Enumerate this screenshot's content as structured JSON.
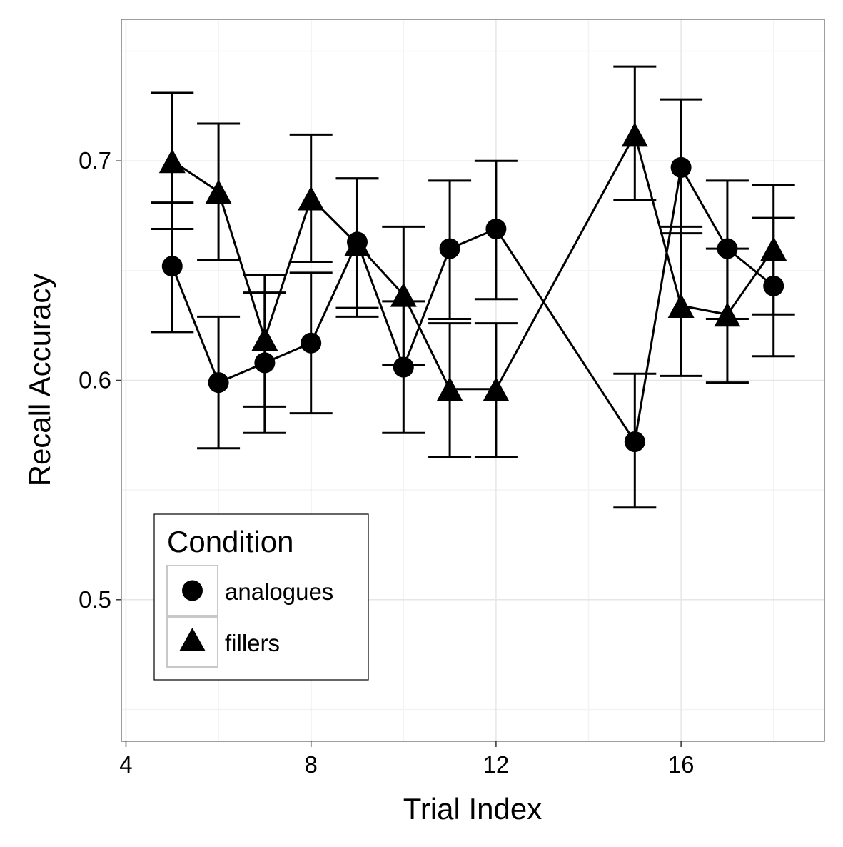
{
  "chart_data": {
    "type": "line",
    "xlabel": "Trial Index",
    "ylabel": "Recall Accuracy",
    "xlim": [
      3.9,
      19.1
    ],
    "ylim": [
      0.4355,
      0.7645
    ],
    "x_ticks": [
      4,
      8,
      12,
      16
    ],
    "x_tick_labels": [
      "4",
      "8",
      "12",
      "16"
    ],
    "y_ticks": [
      0.5,
      0.6,
      0.7
    ],
    "y_tick_labels": [
      "0.5",
      "0.6",
      "0.7"
    ],
    "grid": true,
    "error_bars": true,
    "legend": {
      "title": "Condition",
      "placement": "bottom-left",
      "entries": [
        {
          "label": "analogues",
          "shape": "circle"
        },
        {
          "label": "fillers",
          "shape": "triangle"
        }
      ]
    },
    "series": [
      {
        "name": "analogues",
        "shape": "circle",
        "x": [
          5,
          6,
          7,
          8,
          9,
          10,
          11,
          12,
          15,
          16,
          17,
          18
        ],
        "values": [
          0.652,
          0.599,
          0.608,
          0.617,
          0.663,
          0.606,
          0.66,
          0.669,
          0.572,
          0.697,
          0.66,
          0.643
        ],
        "lower": [
          0.622,
          0.569,
          0.576,
          0.585,
          0.633,
          0.576,
          0.628,
          0.637,
          0.542,
          0.667,
          0.628,
          0.611
        ],
        "upper": [
          0.681,
          0.629,
          0.64,
          0.649,
          0.692,
          0.636,
          0.691,
          0.7,
          0.603,
          0.728,
          0.691,
          0.674
        ]
      },
      {
        "name": "fillers",
        "shape": "triangle",
        "x": [
          5,
          6,
          7,
          8,
          9,
          10,
          11,
          12,
          15,
          16,
          17,
          18
        ],
        "values": [
          0.7,
          0.686,
          0.619,
          0.683,
          0.662,
          0.639,
          0.596,
          0.596,
          0.712,
          0.634,
          0.63,
          0.66
        ],
        "lower": [
          0.669,
          0.655,
          0.588,
          0.654,
          0.629,
          0.607,
          0.565,
          0.565,
          0.682,
          0.602,
          0.599,
          0.63
        ],
        "upper": [
          0.731,
          0.717,
          0.648,
          0.712,
          0.692,
          0.67,
          0.626,
          0.626,
          0.743,
          0.67,
          0.66,
          0.689
        ]
      }
    ],
    "colors": {
      "mark": "#000000",
      "grid_major": "#e6e6e6",
      "grid_minor": "#f3f3f3",
      "panel_border": "#7f7f7f",
      "legend_key_border": "#c8c8c8"
    }
  }
}
